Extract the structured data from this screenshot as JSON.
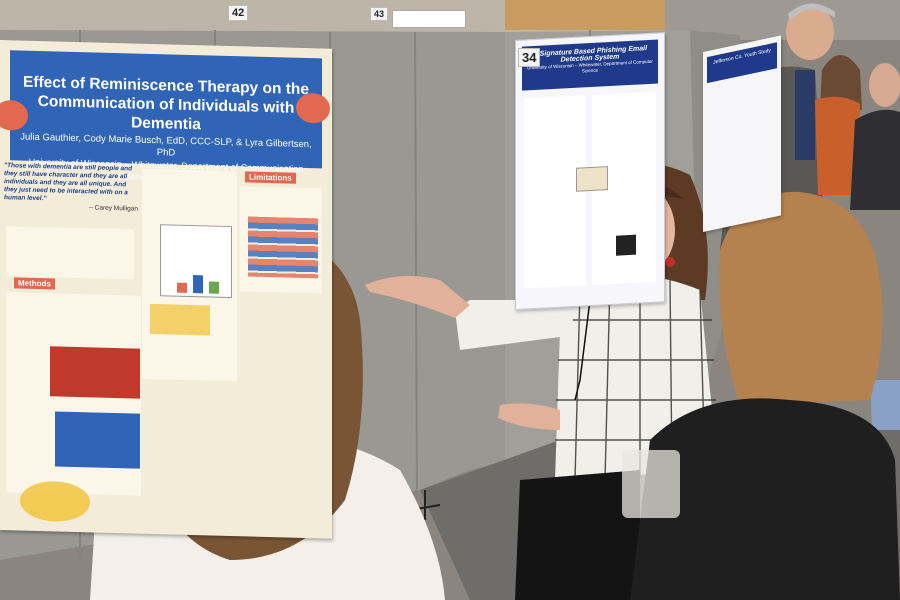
{
  "scene": {
    "description_colors": {
      "wall": "#bdb6a8",
      "partition": "#9a9893",
      "carpet": "#6f6d69",
      "poster_blue": "#2f64b7",
      "poster_coral": "#e2684f"
    }
  },
  "main_poster": {
    "title_line1": "Effect of Reminiscence Therapy on the",
    "title_line2": "Communication of Individuals with Dementia",
    "authors": "Julia Gauthier, Cody Marie Busch, EdD, CCC-SLP, & Lyra Gilbertsen, PhD",
    "affiliation": "University of Wisconsin – Whitewater, Department of Communication Sciences and Disorders",
    "quote": "\"Those with dementia are still people and they still have character and they are all individuals and they are all unique. And they just need to be interacted with on a human level.\"",
    "quote_author": "– Carey Mulligan",
    "methods_heading": "Methods",
    "results_heading": "Limitations"
  },
  "second_poster": {
    "title": "A Signature Based Phishing Email Detection System",
    "subtitle": "University of Wisconsin – Whitewater, Department of Computer Science"
  },
  "third_poster": {
    "title": "Jefferson Co. Youth Study"
  },
  "board_numbers": {
    "left": "42",
    "middle": "43",
    "right": "34"
  }
}
